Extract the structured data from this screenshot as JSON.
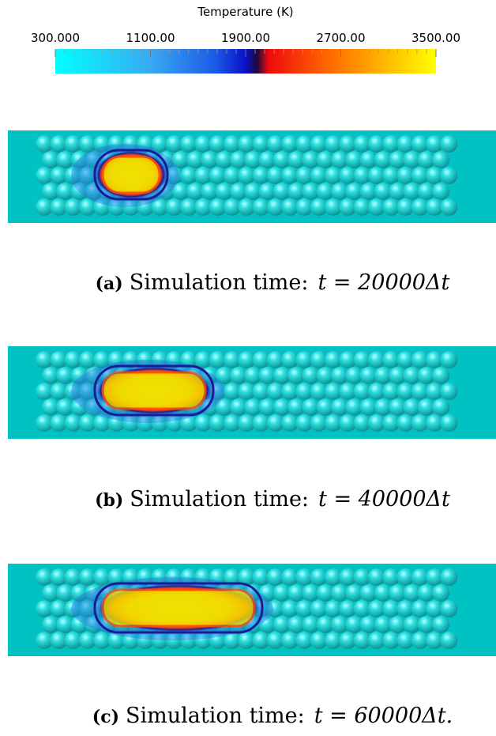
{
  "colorbar": {
    "title": "Temperature (K)",
    "range": [
      300,
      3500
    ],
    "ticks": [
      {
        "value": 300,
        "label": "300.000"
      },
      {
        "value": 1100,
        "label": "1100.00"
      },
      {
        "value": 1900,
        "label": "1900.00"
      },
      {
        "value": 2700,
        "label": "2700.00"
      },
      {
        "value": 3500,
        "label": "3500.00"
      }
    ]
  },
  "panels": [
    {
      "label": "(a)",
      "text": "Simulation time:",
      "formula": "t = 20000Δt"
    },
    {
      "label": "(b)",
      "text": "Simulation time:",
      "formula": "t = 40000Δt"
    },
    {
      "label": "(c)",
      "text": "Simulation time:",
      "formula": "t = 60000Δt."
    }
  ]
}
